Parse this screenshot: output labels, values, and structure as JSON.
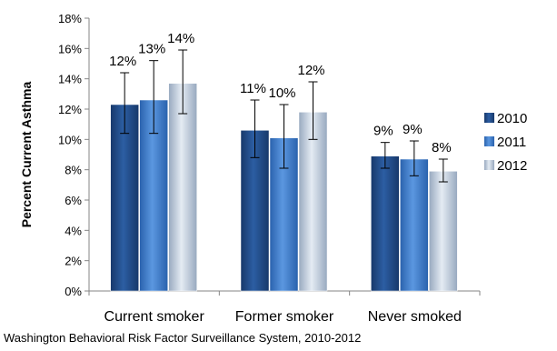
{
  "chart_data": {
    "type": "bar",
    "ylabel": "Percent Current Asthma",
    "ylim": [
      0,
      18
    ],
    "ytick_labels": [
      "0%",
      "2%",
      "4%",
      "6%",
      "8%",
      "10%",
      "12%",
      "14%",
      "16%",
      "18%"
    ],
    "categories": [
      "Current smoker",
      "Former smoker",
      "Never smoked"
    ],
    "series": [
      {
        "name": "2010",
        "color": "#1f4e8c",
        "values": [
          12.3,
          10.6,
          8.9
        ],
        "err_low": [
          10.4,
          8.8,
          8.1
        ],
        "err_high": [
          14.4,
          12.6,
          9.8
        ],
        "labels": [
          "12%",
          "11%",
          "9%"
        ]
      },
      {
        "name": "2011",
        "color": "#3a78c9",
        "values": [
          12.6,
          10.1,
          8.7
        ],
        "err_low": [
          10.4,
          8.1,
          7.6
        ],
        "err_high": [
          15.2,
          12.3,
          9.9
        ],
        "labels": [
          "13%",
          "10%",
          "9%"
        ]
      },
      {
        "name": "2012",
        "color": "#bcc9d8",
        "values": [
          13.7,
          11.8,
          7.9
        ],
        "err_low": [
          11.7,
          10.0,
          7.2
        ],
        "err_high": [
          15.9,
          13.8,
          8.7
        ],
        "labels": [
          "14%",
          "12%",
          "8%"
        ]
      }
    ],
    "error_bars": true,
    "grid": false,
    "legend": "right"
  },
  "source_note": "Washington Behavioral Risk Factor Surveillance System, 2010-2012"
}
